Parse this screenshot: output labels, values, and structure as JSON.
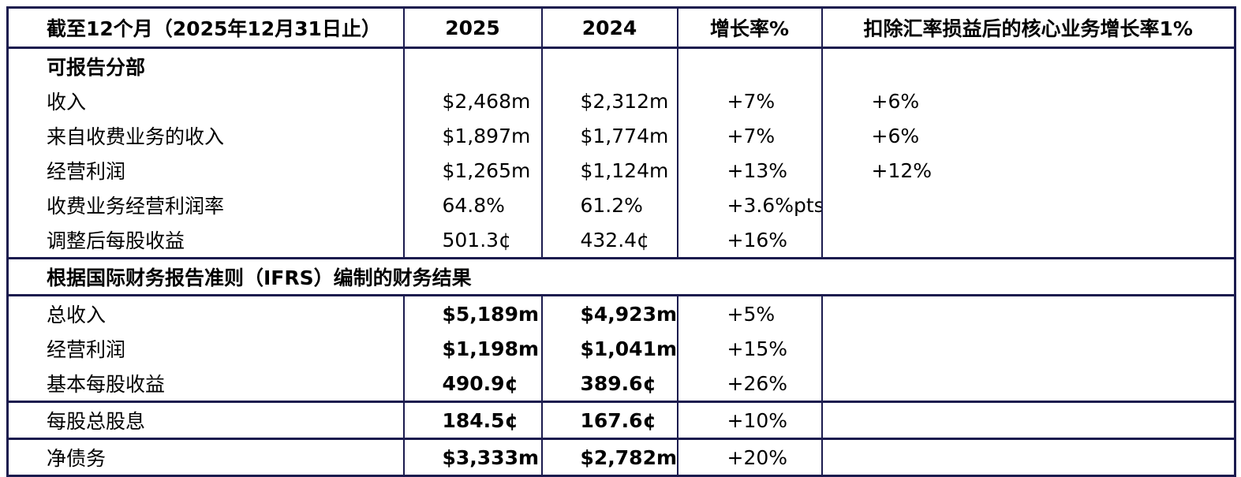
{
  "colors": {
    "border": "#1b1b4e",
    "text": "#000000",
    "background": "#ffffff"
  },
  "header": {
    "period_label": "截至12个月（2025年12月31日止）",
    "col_2025": "2025",
    "col_2024": "2024",
    "col_growth": "增长率%",
    "col_core_growth": "扣除汇率损益后的核心业务增长率1%"
  },
  "sections": [
    {
      "title": "可报告分部",
      "rows": [
        {
          "label": "收入",
          "v2025": "$2,468m",
          "v2024": "$2,312m",
          "growth": "+7%",
          "core": "+6%"
        },
        {
          "label": "来自收费业务的收入",
          "v2025": "$1,897m",
          "v2024": "$1,774m",
          "growth": "+7%",
          "core": "+6%"
        },
        {
          "label": "经营利润",
          "v2025": "$1,265m",
          "v2024": "$1,124m",
          "growth": "+13%",
          "core": "+12%"
        },
        {
          "label": "收费业务经营利润率",
          "v2025": "64.8%",
          "v2024": "61.2%",
          "growth": "+3.6%pts",
          "core": ""
        },
        {
          "label": "调整后每股收益",
          "v2025": "501.3¢",
          "v2024": "432.4¢",
          "growth": "+16%",
          "core": ""
        }
      ]
    },
    {
      "title": "根据国际财务报告准则（IFRS）编制的财务结果",
      "rows": [
        {
          "label": "总收入",
          "v2025": "$5,189m",
          "v2024": "$4,923m",
          "growth": "+5%",
          "core": ""
        },
        {
          "label": "经营利润",
          "v2025": "$1,198m",
          "v2024": "$1,041m",
          "growth": "+15%",
          "core": ""
        },
        {
          "label": "基本每股收益",
          "v2025": "490.9¢",
          "v2024": "389.6¢",
          "growth": "+26%",
          "core": ""
        },
        {
          "label": "每股总股息",
          "v2025": "184.5¢",
          "v2024": "167.6¢",
          "growth": "+10%",
          "core": ""
        },
        {
          "label": "净债务",
          "v2025": "$3,333m",
          "v2024": "$2,782m",
          "growth": "+20%",
          "core": ""
        }
      ]
    }
  ]
}
